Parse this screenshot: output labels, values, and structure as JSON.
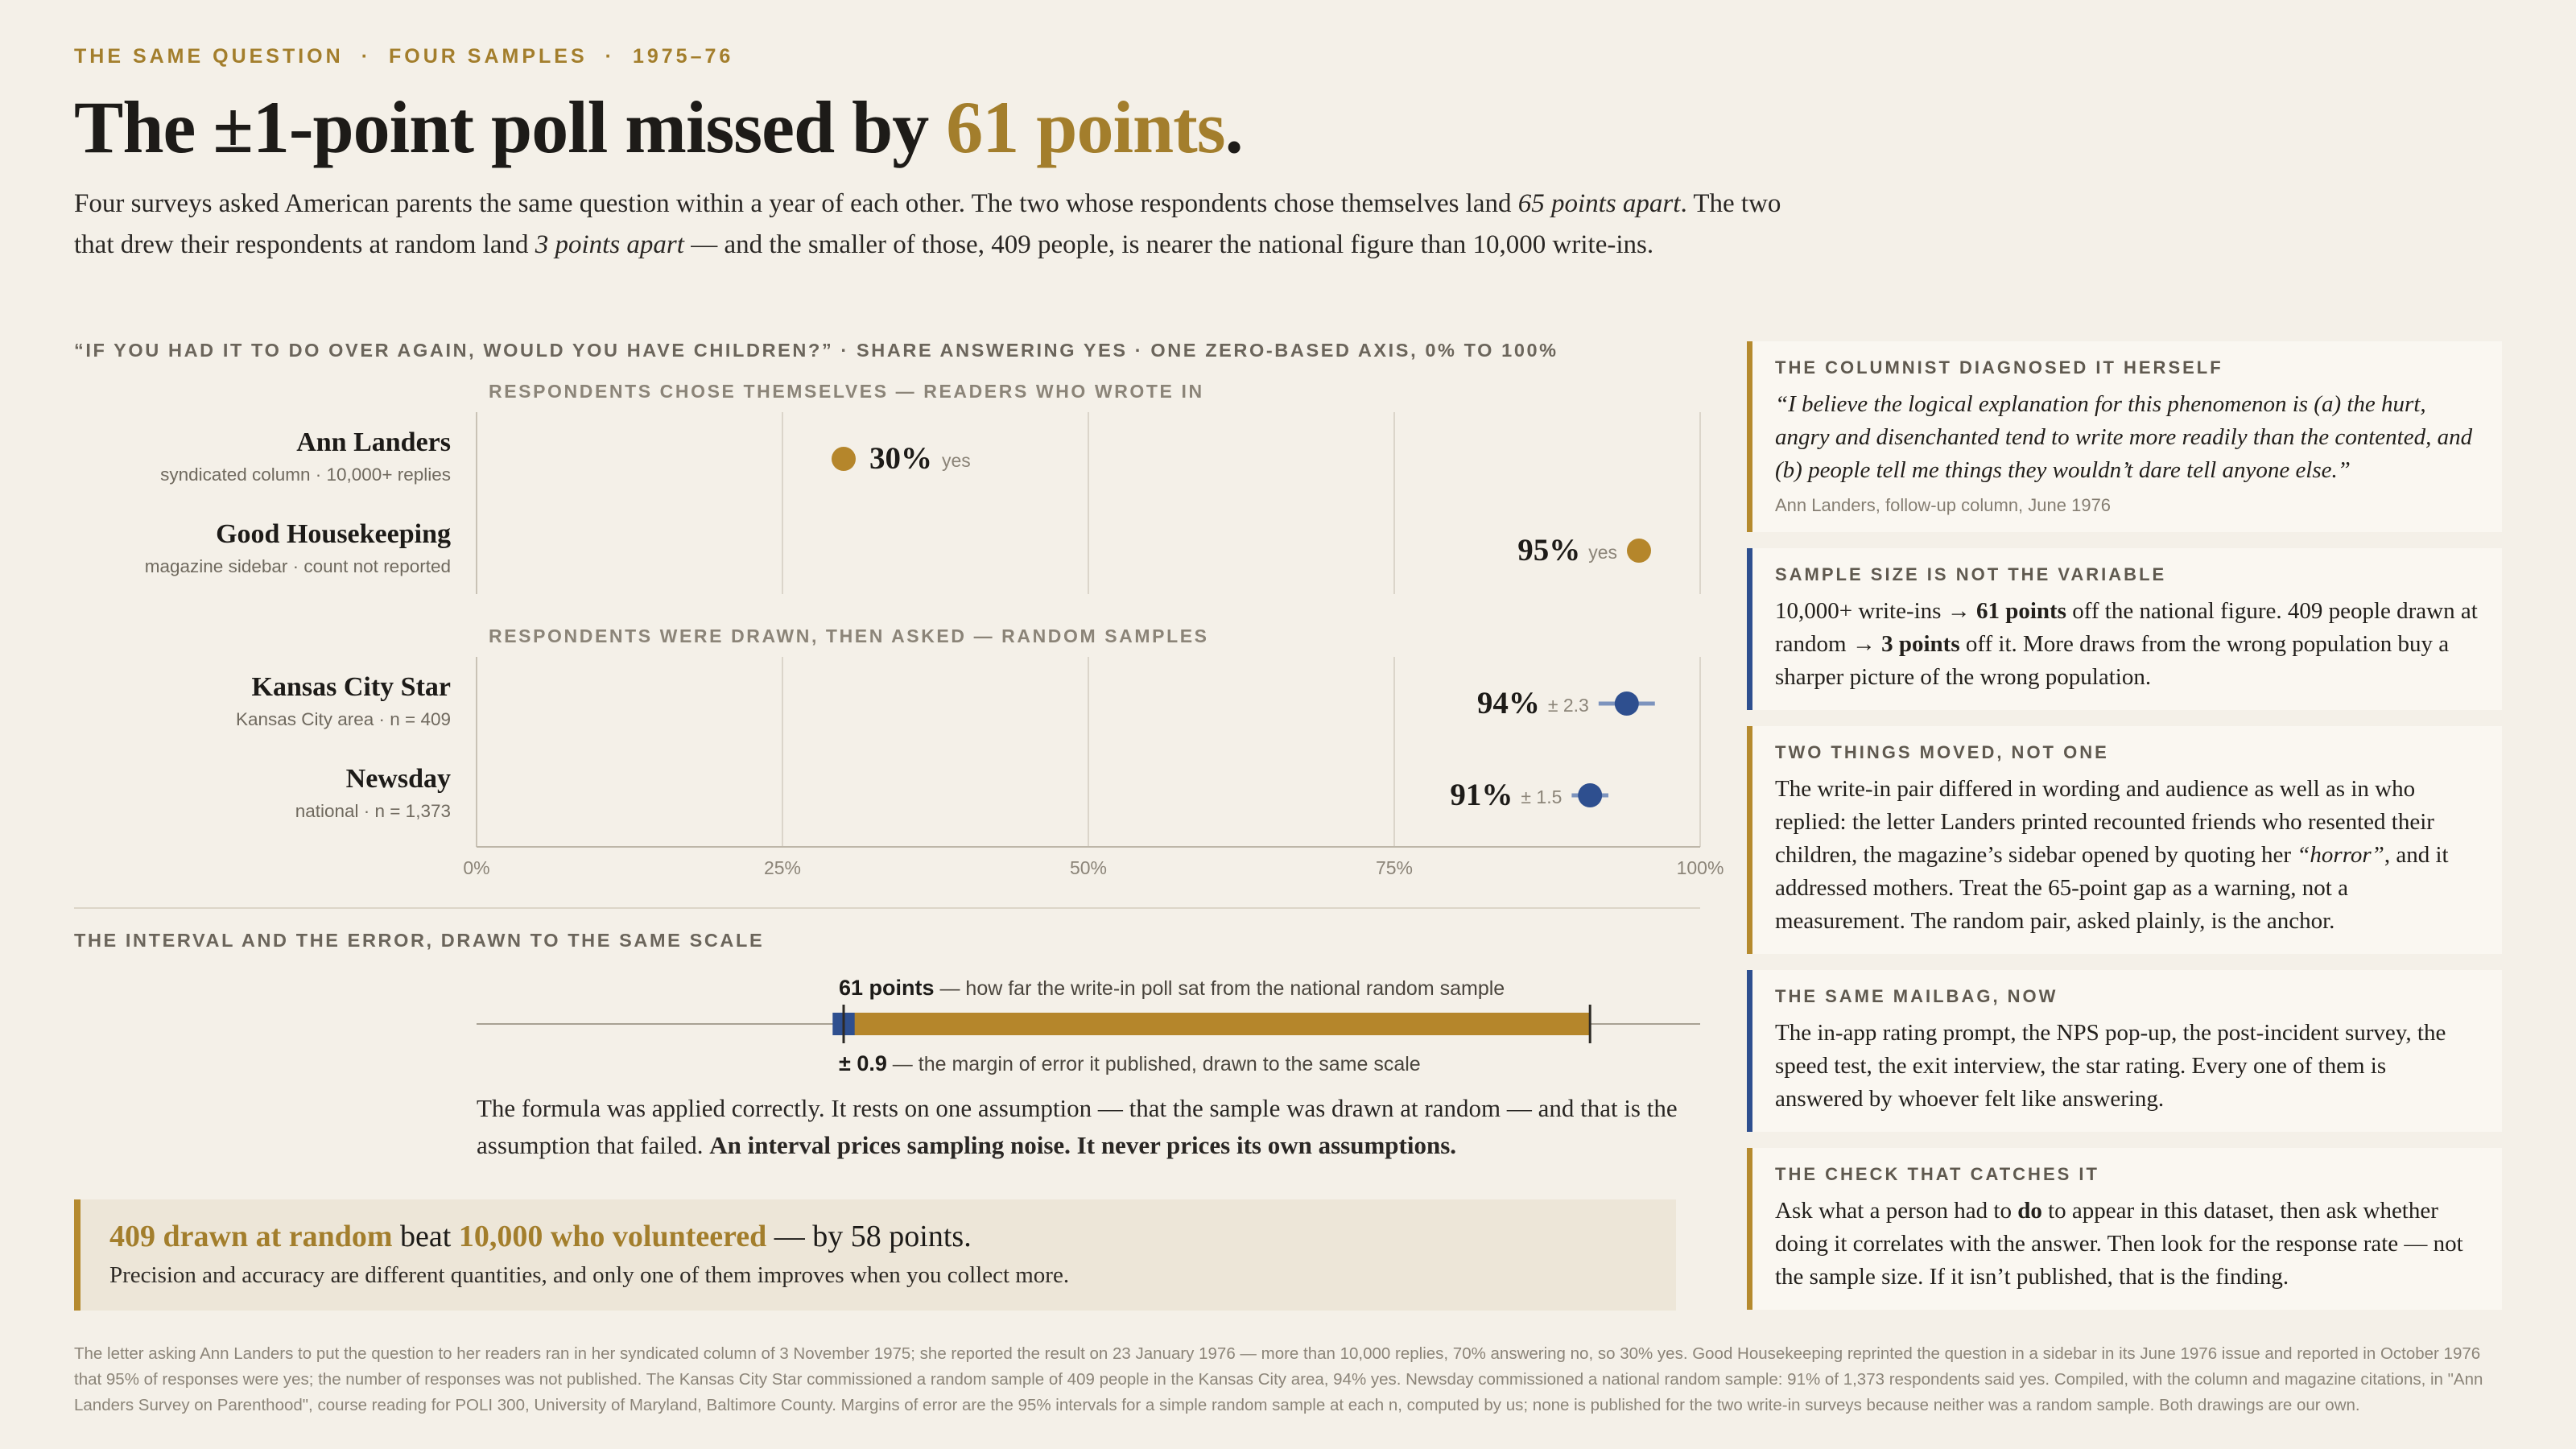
{
  "eyebrow": [
    "THE SAME QUESTION",
    "FOUR SAMPLES",
    "1975–76"
  ],
  "eyebrow_sep": "·",
  "headline": {
    "pre": "The ±1-point poll missed by ",
    "accent": "61 points",
    "post": "."
  },
  "dek": {
    "p1": "Four surveys asked American parents the same question within a year of each other. The two whose respondents chose themselves land ",
    "em1": "65 points apart",
    "p2": ". The two that drew their respondents at random land ",
    "em2": "3 points apart",
    "p3": " — and the smaller of those, 409 people, is nearer the national figure than 10,000 write-ins."
  },
  "chart_caption": "“IF YOU HAD IT TO DO OVER AGAIN, WOULD YOU HAVE CHILDREN?” · SHARE ANSWERING YES · ONE ZERO-BASED AXIS, 0% TO 100%",
  "chart_data": {
    "type": "scatter",
    "xlim": [
      0,
      100
    ],
    "x_ticks": [
      "0%",
      "25%",
      "50%",
      "75%",
      "100%"
    ],
    "groups": [
      {
        "label": "RESPONDENTS CHOSE THEMSELVES  —  READERS WHO WROTE IN",
        "rows": [
          {
            "name": "Ann Landers",
            "sub": "syndicated column · 10,000+ replies",
            "value": 30,
            "value_label": "30%",
            "note": "yes",
            "moe": null,
            "label_side": "right"
          },
          {
            "name": "Good Housekeeping",
            "sub": "magazine sidebar · count not reported",
            "value": 95,
            "value_label": "95%",
            "note": "yes",
            "moe": null,
            "label_side": "left"
          }
        ]
      },
      {
        "label": "RESPONDENTS WERE DRAWN, THEN ASKED  —  RANDOM SAMPLES",
        "rows": [
          {
            "name": "Kansas City Star",
            "sub": "Kansas City area · n = 409",
            "value": 94,
            "value_label": "94%",
            "note": "± 2.3",
            "moe": 2.3,
            "label_side": "left"
          },
          {
            "name": "Newsday",
            "sub": "national · n = 1,373",
            "value": 91,
            "value_label": "91%",
            "note": "± 1.5",
            "moe": 1.5,
            "label_side": "left"
          }
        ]
      }
    ],
    "colors": {
      "self_selected": "#b5862b",
      "random": "#2e4f8f"
    }
  },
  "interval": {
    "title": "THE INTERVAL AND THE ERROR, DRAWN TO THE SAME SCALE",
    "gap_points": 61,
    "gap_start": 30,
    "gap_end": 91,
    "moe": 0.9,
    "gap_label_bold": "61 points",
    "gap_label_rest": " — how far the write-in poll sat from the national random sample",
    "moe_label_bold": "± 0.9",
    "moe_label_rest": " — the margin of error it published, drawn to the same scale"
  },
  "formula": {
    "p1": "The formula was applied correctly. It rests on one assumption — that the sample was drawn at random — and that is the assumption that failed. ",
    "b1": "An interval prices sampling noise. It never prices its own assumptions."
  },
  "callout": {
    "a1": "409 drawn at random",
    "t1": " beat ",
    "a2": "10,000 who volunteered",
    "t2": " — by 58 points.",
    "line2": "Precision and accuracy are different quantities, and only one of them improves when you collect more."
  },
  "sidebar": [
    {
      "title": "THE COLUMNIST DIAGNOSED IT HERSELF",
      "color": "gold",
      "quote": "“I believe the logical explanation for this phenomenon is (a) the hurt, angry and disenchanted tend to write more readily than the contented, and (b) people tell me things they wouldn’t dare tell anyone else.”",
      "source": "Ann Landers, follow-up column, June 1976"
    },
    {
      "title": "SAMPLE SIZE IS NOT THE VARIABLE",
      "color": "blue",
      "t1": "10,000+ write-ins → ",
      "b1": "61 points",
      "t2": " off the national figure. 409 people drawn at random → ",
      "b2": "3 points",
      "t3": " off it. More draws from the wrong population buy a sharper picture of the wrong population."
    },
    {
      "title": "TWO THINGS MOVED, NOT ONE",
      "color": "gold",
      "t1": "The write-in pair differed in wording and audience as well as in who replied: the letter Landers printed recounted friends who resented their children, the magazine’s sidebar opened by quoting her ",
      "i1": "“horror”",
      "t2": ", and it addressed mothers. Treat the 65-point gap as a warning, not a measurement. The random pair, asked plainly, is the anchor."
    },
    {
      "title": "THE SAME MAILBAG, NOW",
      "color": "blue",
      "body": "The in-app rating prompt, the NPS pop-up, the post-incident survey, the speed test, the exit interview, the star rating. Every one of them is answered by whoever felt like answering."
    },
    {
      "title": "THE CHECK THAT CATCHES IT",
      "color": "gold",
      "t1": "Ask what a person had to ",
      "b1": "do",
      "t2": " to appear in this dataset, then ask whether doing it correlates with the answer. Then look for the response rate — not the sample size. If it isn’t published, that is the finding."
    }
  ],
  "footnote": "The letter asking Ann Landers to put the question to her readers ran in her syndicated column of 3 November 1975; she reported the result on 23 January 1976 — more than 10,000 replies, 70% answering no, so 30% yes. Good Housekeeping reprinted the question in a sidebar in its June 1976 issue and reported in October 1976 that 95% of responses were yes; the number of responses was not published. The Kansas City Star commissioned a random sample of 409 people in the Kansas City area, 94% yes. Newsday commissioned a national random sample: 91% of 1,373 respondents said yes. Compiled, with the column and magazine citations, in \"Ann Landers Survey on Parenthood\", course reading for POLI 300, University of Maryland, Baltimore County. Margins of error are the 95% intervals for a simple random sample at each n, computed by us; none is published for the two write-in surveys because neither was a random sample. Both drawings are our own."
}
